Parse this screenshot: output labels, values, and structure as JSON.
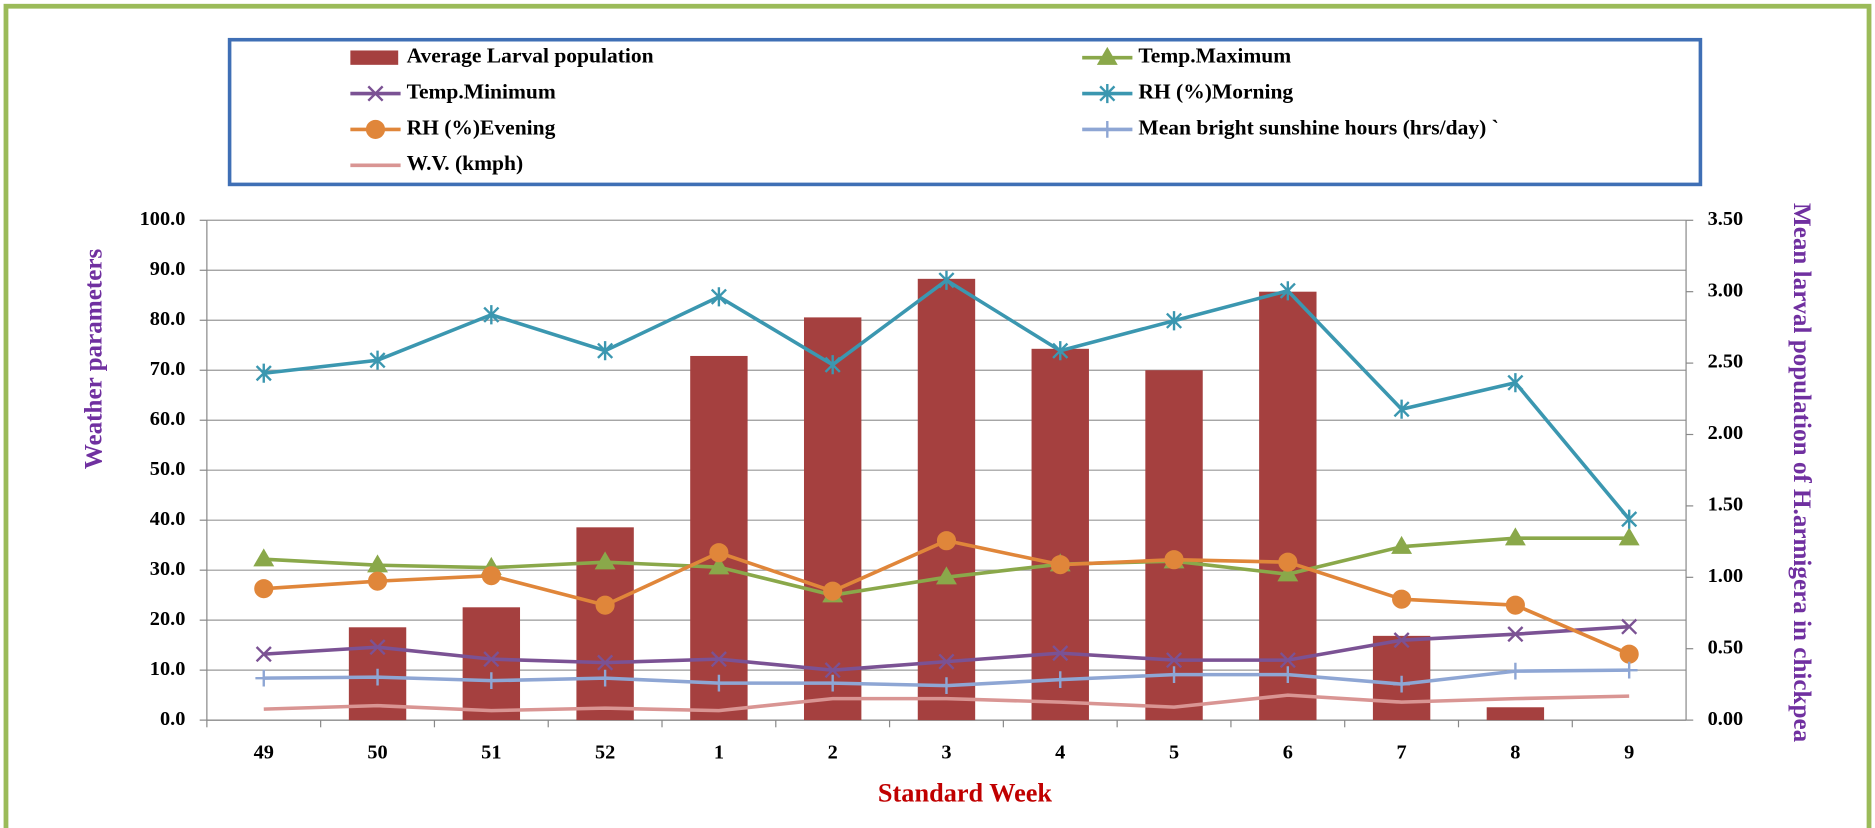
{
  "chart_data": {
    "type": "bar",
    "x_label": "Standard Week",
    "y_label": "Weather parameters",
    "y2_label": "Mean larval population of H.armigera in chickpea",
    "categories": [
      "49",
      "50",
      "51",
      "52",
      "1",
      "2",
      "3",
      "4",
      "5",
      "6",
      "7",
      "8",
      "9"
    ],
    "ylim": [
      0,
      100
    ],
    "yticks": [
      {
        "value": 0,
        "label": "0.0"
      },
      {
        "value": 10,
        "label": "10.0"
      },
      {
        "value": 20,
        "label": "20.0"
      },
      {
        "value": 30,
        "label": "30.0"
      },
      {
        "value": 40,
        "label": "40.0"
      },
      {
        "value": 50,
        "label": "50.0"
      },
      {
        "value": 60,
        "label": "60.0"
      },
      {
        "value": 70,
        "label": "70.0"
      },
      {
        "value": 80,
        "label": "80.0"
      },
      {
        "value": 90,
        "label": "90.0"
      },
      {
        "value": 100,
        "label": "100.0"
      }
    ],
    "y2lim": [
      0,
      3.5
    ],
    "y2ticks": [
      {
        "value": 0,
        "label": "0.00"
      },
      {
        "value": 0.5,
        "label": "0.50"
      },
      {
        "value": 1,
        "label": "1.00"
      },
      {
        "value": 1.5,
        "label": "1.50"
      },
      {
        "value": 2,
        "label": "2.00"
      },
      {
        "value": 2.5,
        "label": "2.50"
      },
      {
        "value": 3,
        "label": "3.00"
      },
      {
        "value": 3.5,
        "label": "3.50"
      }
    ],
    "grid": true,
    "series": [
      {
        "name": "Average Larval population",
        "type": "bar",
        "axis": "y2",
        "color": "#a5403f",
        "values": [
          0,
          0.65,
          0.79,
          1.35,
          2.55,
          2.82,
          3.09,
          2.6,
          2.45,
          3.0,
          0.59,
          0.09,
          0
        ]
      },
      {
        "name": "Temp.Maximum",
        "type": "line",
        "marker": "triangle",
        "color": "#8aa84a",
        "values": [
          32.2,
          31.0,
          30.5,
          31.6,
          30.6,
          25.0,
          28.6,
          31.2,
          31.8,
          29.2,
          34.7,
          36.4,
          36.4
        ]
      },
      {
        "name": "Temp.Minimum",
        "type": "line",
        "marker": "x",
        "color": "#7b5294",
        "values": [
          13.2,
          14.6,
          12.2,
          11.5,
          12.2,
          10.0,
          11.7,
          13.4,
          12.0,
          12.0,
          16.0,
          17.2,
          18.7
        ]
      },
      {
        "name": "RH (%)Morning",
        "type": "line",
        "marker": "star",
        "color": "#3b97b0",
        "values": [
          69.4,
          72.0,
          81.1,
          73.9,
          84.7,
          71.1,
          88.0,
          73.9,
          79.9,
          85.9,
          62.2,
          67.5,
          40.2
        ]
      },
      {
        "name": "RH (%)Evening",
        "type": "line",
        "marker": "circle",
        "color": "#e0863a",
        "values": [
          26.3,
          27.8,
          28.9,
          23.0,
          33.5,
          25.8,
          35.9,
          31.1,
          32.1,
          31.6,
          24.2,
          23.0,
          13.2
        ]
      },
      {
        "name": "Mean bright sunshine hours (hrs/day) `",
        "type": "line",
        "marker": "plus",
        "color": "#8ea6d4",
        "values": [
          8.4,
          8.6,
          7.9,
          8.4,
          7.4,
          7.4,
          6.9,
          8.1,
          9.1,
          9.1,
          7.2,
          9.8,
          10.0
        ]
      },
      {
        "name": "W.V. (kmph)",
        "type": "line",
        "marker": "none",
        "color": "#d99593",
        "values": [
          2.2,
          2.9,
          1.9,
          2.4,
          1.9,
          4.3,
          4.3,
          3.6,
          2.6,
          5.0,
          3.6,
          4.3,
          4.8
        ]
      }
    ]
  }
}
